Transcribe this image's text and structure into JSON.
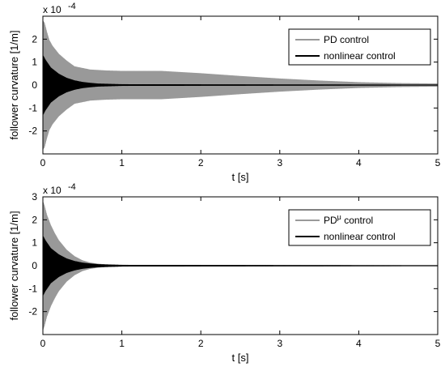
{
  "chart_data": [
    {
      "type": "line",
      "title": "",
      "xlabel": "t  [s]",
      "ylabel": "follower curvature  [1/m]",
      "xlim": [
        0,
        5
      ],
      "ylim": [
        -3,
        3
      ],
      "y_scale_label": "x 10",
      "y_scale_exponent": "-4",
      "xticks": [
        "0",
        "1",
        "2",
        "3",
        "4",
        "5"
      ],
      "yticks": [
        "-2",
        "-1",
        "0",
        "1",
        "2"
      ],
      "ytick_values": [
        -2,
        -1,
        0,
        1,
        2
      ],
      "grid": false,
      "legend_position": "top-right",
      "series": [
        {
          "name_main": "PD control",
          "name_sup": "",
          "color": "#999999",
          "envelope": {
            "t": [
              0,
              0.02,
              0.05,
              0.08,
              0.12,
              0.2,
              0.3,
              0.4,
              0.6,
              0.8,
              1.0,
              1.5,
              2.0,
              2.5,
              3.0,
              3.5,
              4.0,
              4.5,
              5.0
            ],
            "amp": [
              2.8,
              2.7,
              2.3,
              1.95,
              1.7,
              1.35,
              1.05,
              0.8,
              0.66,
              0.62,
              0.6,
              0.6,
              0.5,
              0.38,
              0.27,
              0.18,
              0.11,
              0.07,
              0.05
            ]
          }
        },
        {
          "name_main": "nonlinear control",
          "name_sup": "",
          "color": "#000000",
          "envelope": {
            "t": [
              0,
              0.03,
              0.1,
              0.2,
              0.3,
              0.4,
              0.5,
              0.6,
              0.7,
              0.8,
              1.0,
              5.0
            ],
            "amp": [
              1.3,
              1.1,
              0.75,
              0.48,
              0.3,
              0.19,
              0.12,
              0.08,
              0.05,
              0.04,
              0.02,
              0.0
            ]
          }
        }
      ]
    },
    {
      "type": "line",
      "title": "",
      "xlabel": "t  [s]",
      "ylabel": "follower curvature  [1/m]",
      "xlim": [
        0,
        5
      ],
      "ylim": [
        -3,
        3
      ],
      "y_scale_label": "x 10",
      "y_scale_exponent": "-4",
      "xticks": [
        "0",
        "1",
        "2",
        "3",
        "4",
        "5"
      ],
      "yticks": [
        "-2",
        "-1",
        "0",
        "1",
        "2",
        "3"
      ],
      "ytick_values": [
        -2,
        -1,
        0,
        1,
        2,
        3
      ],
      "grid": false,
      "legend_position": "top-right",
      "series": [
        {
          "name_main": "PD",
          "name_sup": "μ",
          "name_rest": " control",
          "color": "#999999",
          "envelope": {
            "t": [
              0,
              0.02,
              0.05,
              0.1,
              0.15,
              0.2,
              0.3,
              0.4,
              0.5,
              0.6,
              0.7,
              0.8,
              1.0,
              1.5,
              5.0
            ],
            "amp": [
              2.8,
              2.6,
              2.2,
              1.75,
              1.4,
              1.1,
              0.68,
              0.4,
              0.22,
              0.12,
              0.07,
              0.04,
              0.02,
              0.01,
              0.0
            ]
          }
        },
        {
          "name_main": "nonlinear control",
          "name_sup": "",
          "name_rest": "",
          "color": "#000000",
          "envelope": {
            "t": [
              0,
              0.03,
              0.1,
              0.2,
              0.3,
              0.4,
              0.5,
              0.6,
              0.7,
              0.8,
              1.0,
              5.0
            ],
            "amp": [
              1.3,
              1.1,
              0.75,
              0.48,
              0.3,
              0.19,
              0.12,
              0.08,
              0.05,
              0.04,
              0.02,
              0.0
            ]
          }
        }
      ]
    }
  ]
}
